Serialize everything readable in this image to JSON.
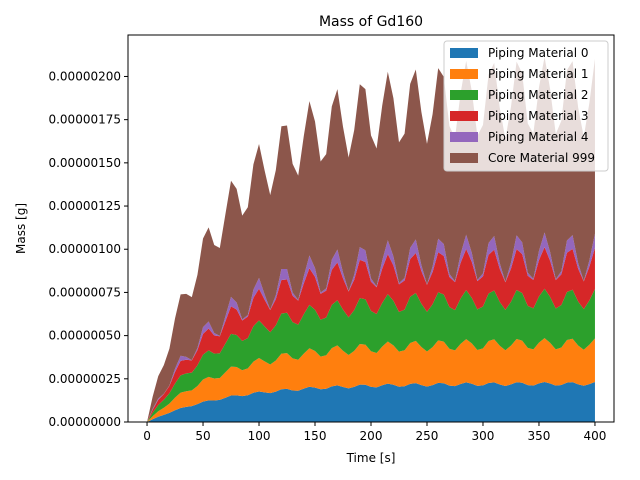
{
  "chart_data": {
    "type": "area",
    "stacked": true,
    "title": "Mass of Gd160",
    "xlabel": "Time [s]",
    "ylabel": "Mass [g]",
    "xlim": [
      -17,
      417
    ],
    "ylim": [
      0,
      2.24e-06
    ],
    "x_ticks": [
      0,
      50,
      100,
      150,
      200,
      250,
      300,
      350,
      400
    ],
    "x_tick_labels": [
      "0",
      "50",
      "100",
      "150",
      "200",
      "250",
      "300",
      "350",
      "400"
    ],
    "y_ticks": [
      0,
      2.5e-07,
      5e-07,
      7.5e-07,
      1e-06,
      1.25e-06,
      1.5e-06,
      1.75e-06,
      2e-06
    ],
    "y_tick_labels": [
      "0.00000000",
      "0.00000025",
      "0.00000050",
      "0.00000075",
      "0.00000100",
      "0.00000125",
      "0.00000150",
      "0.00000175",
      "0.00000200"
    ],
    "grid": false,
    "legend_position": "top-right",
    "x_step": 5,
    "x_max": 400,
    "tau": 70,
    "series": [
      {
        "name": "Piping Material 0",
        "color": "#1f77b4",
        "base": 2.22e-07,
        "oscillation": 0.05
      },
      {
        "name": "Piping Material 1",
        "color": "#ff7f0e",
        "base": 2.32e-07,
        "oscillation": 0.1
      },
      {
        "name": "Piping Material 2",
        "color": "#2ca02c",
        "base": 2.62e-07,
        "oscillation": 0.1
      },
      {
        "name": "Piping Material 3",
        "color": "#d62728",
        "base": 2.02e-07,
        "oscillation": 0.2
      },
      {
        "name": "Piping Material 4",
        "color": "#9467bd",
        "base": 4.35e-08,
        "oscillation": 0.95
      },
      {
        "name": "Core Material 999",
        "color": "#8c564b",
        "base": 9.3e-07,
        "oscillation": 0.1
      }
    ]
  }
}
